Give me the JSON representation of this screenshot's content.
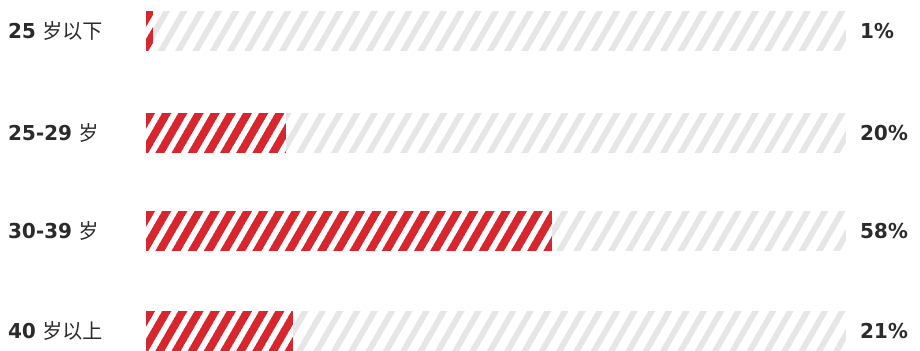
{
  "chart_data": {
    "type": "bar",
    "orientation": "horizontal",
    "categories": [
      {
        "num": "25",
        "unit": " 岁以下"
      },
      {
        "num": "25-29",
        "unit": " 岁"
      },
      {
        "num": "30-39",
        "unit": " 岁"
      },
      {
        "num": "40",
        "unit": " 岁以上"
      }
    ],
    "values": [
      1,
      20,
      58,
      21
    ],
    "value_labels": [
      "1%",
      "20%",
      "58%",
      "21%"
    ],
    "xlim": [
      0,
      100
    ],
    "bar_color": "#d7262e",
    "track_color": "#e6e6e6",
    "text_color": "#2b2b2b"
  }
}
